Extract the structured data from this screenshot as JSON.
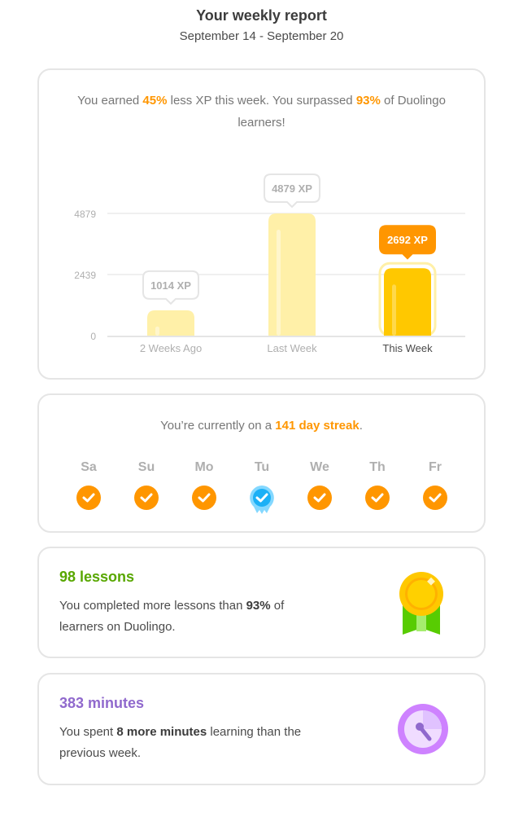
{
  "header": {
    "title": "Your weekly report",
    "date_range": "September 14 - September 20"
  },
  "xp_card": {
    "msg_pre": "You earned ",
    "pct_less": "45%",
    "msg_mid": " less XP this week. You surpassed ",
    "pct_surpassed": "93%",
    "msg_post": " of Duolingo learners!"
  },
  "chart_data": {
    "type": "bar",
    "categories": [
      "2 Weeks Ago",
      "Last Week",
      "This Week"
    ],
    "values": [
      1014,
      4879,
      2692
    ],
    "data_labels": [
      "1014 XP",
      "4879 XP",
      "2692 XP"
    ],
    "y_ticks": [
      "0",
      "2439",
      "4879"
    ],
    "ylim": [
      0,
      4879
    ],
    "grid": true,
    "colors": {
      "past": "#fff0a8",
      "current": "#ffc800",
      "current_label": "#ff9600"
    }
  },
  "streak_card": {
    "pre": "You’re currently on a ",
    "streak": "141 day streak",
    "post": ".",
    "days": [
      {
        "label": "Sa",
        "type": "done"
      },
      {
        "label": "Su",
        "type": "done"
      },
      {
        "label": "Mo",
        "type": "done"
      },
      {
        "label": "Tu",
        "type": "freeze"
      },
      {
        "label": "We",
        "type": "done"
      },
      {
        "label": "Th",
        "type": "done"
      },
      {
        "label": "Fr",
        "type": "done"
      }
    ]
  },
  "lessons_card": {
    "title": "98 lessons",
    "pre": "You completed more lessons than ",
    "pct": "93%",
    "post": " of learners on Duolingo.",
    "color": "#58a700",
    "icon": "medal-icon"
  },
  "minutes_card": {
    "title": "383 minutes",
    "pre": "You spent ",
    "bold": "8 more minutes",
    "post": " learning than the previous week.",
    "color": "#9069cd",
    "icon": "clock-icon"
  }
}
